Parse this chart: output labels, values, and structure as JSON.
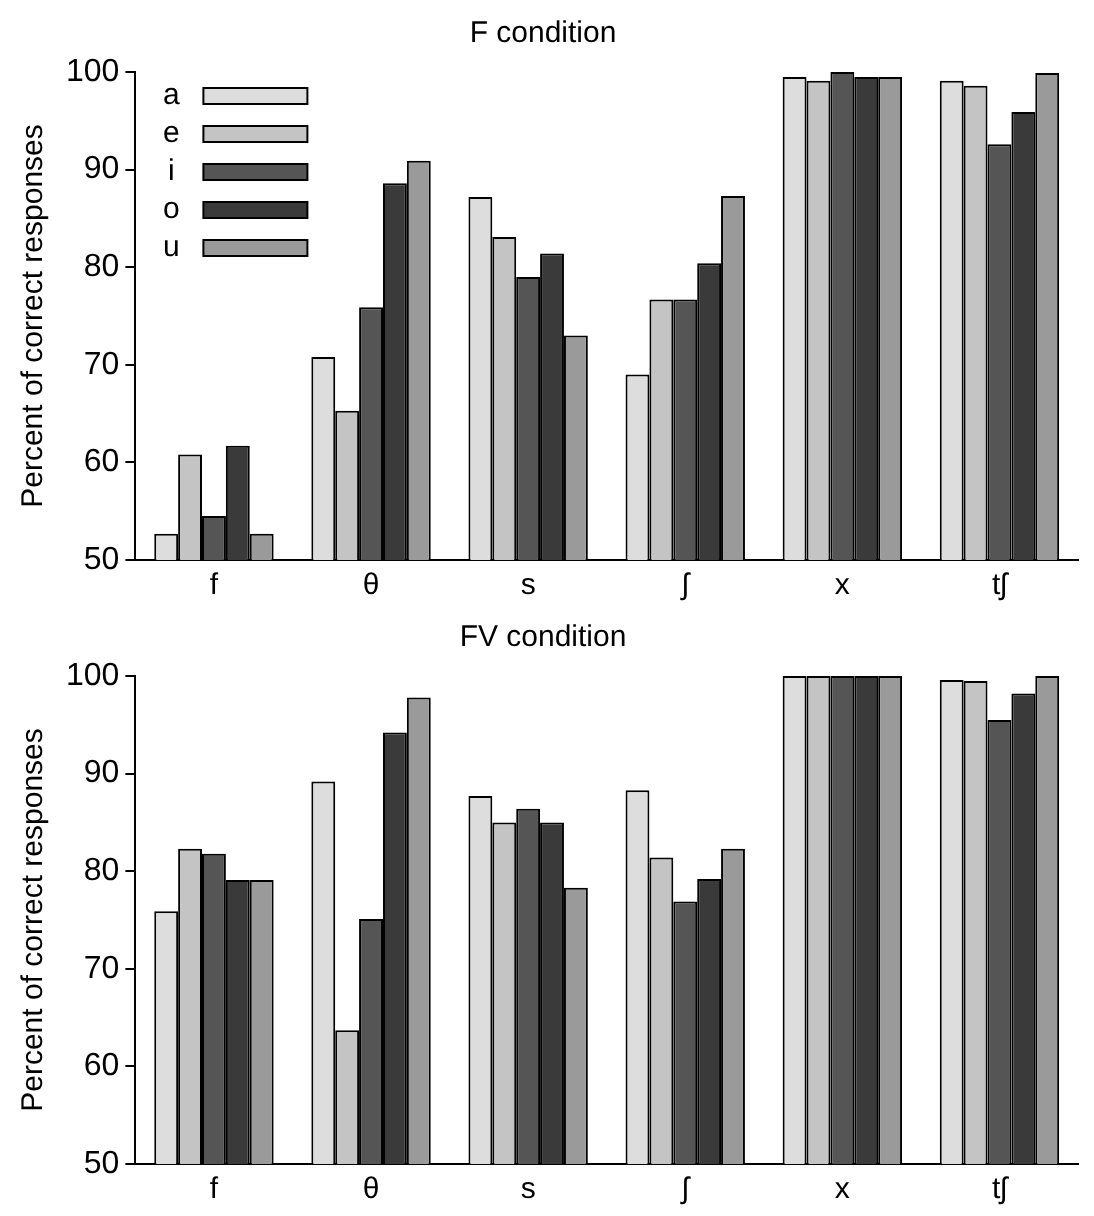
{
  "chart_data": [
    {
      "type": "bar",
      "title": "F condition",
      "ylabel": "Percent of correct responses",
      "categories": [
        "f",
        "θ",
        "s",
        "ʃ",
        "x",
        "tʃ"
      ],
      "ylim": [
        50,
        100
      ],
      "yticks": [
        50,
        60,
        70,
        80,
        90,
        100
      ],
      "grid": false,
      "legend": "top left",
      "series": [
        {
          "name": "a",
          "color": "#dddddd",
          "values": [
            52.7,
            70.8,
            87.2,
            69.0,
            99.5,
            99.1
          ]
        },
        {
          "name": "e",
          "color": "#c4c4c4",
          "values": [
            60.8,
            65.3,
            83.1,
            76.7,
            99.1,
            98.6
          ]
        },
        {
          "name": "i",
          "color": "#555555",
          "values": [
            54.5,
            75.9,
            79.0,
            76.7,
            100,
            92.6
          ]
        },
        {
          "name": "o",
          "color": "#3a3a3a",
          "values": [
            61.7,
            88.6,
            81.4,
            80.4,
            99.5,
            95.9
          ]
        },
        {
          "name": "u",
          "color": "#9a9a9a",
          "values": [
            52.7,
            90.9,
            73.0,
            87.3,
            99.5,
            99.9
          ]
        }
      ]
    },
    {
      "type": "bar",
      "title": "FV condition",
      "ylabel": "Percent of correct responses",
      "categories": [
        "f",
        "θ",
        "s",
        "ʃ",
        "x",
        "tʃ"
      ],
      "ylim": [
        50,
        100
      ],
      "yticks": [
        50,
        60,
        70,
        80,
        90,
        100
      ],
      "grid": false,
      "series": [
        {
          "color": "#dddddd",
          "values": [
            75.9,
            89.2,
            87.7,
            88.3,
            100,
            99.6
          ]
        },
        {
          "color": "#c4c4c4",
          "values": [
            82.3,
            63.7,
            85.0,
            81.4,
            100,
            99.5
          ]
        },
        {
          "color": "#555555",
          "values": [
            81.8,
            75.1,
            86.4,
            76.9,
            100,
            95.5
          ]
        },
        {
          "color": "#3a3a3a",
          "values": [
            79.1,
            94.2,
            85.0,
            79.2,
            100,
            98.2
          ]
        },
        {
          "color": "#9a9a9a",
          "values": [
            79.1,
            97.8,
            78.3,
            82.3,
            100,
            100
          ]
        }
      ]
    }
  ]
}
